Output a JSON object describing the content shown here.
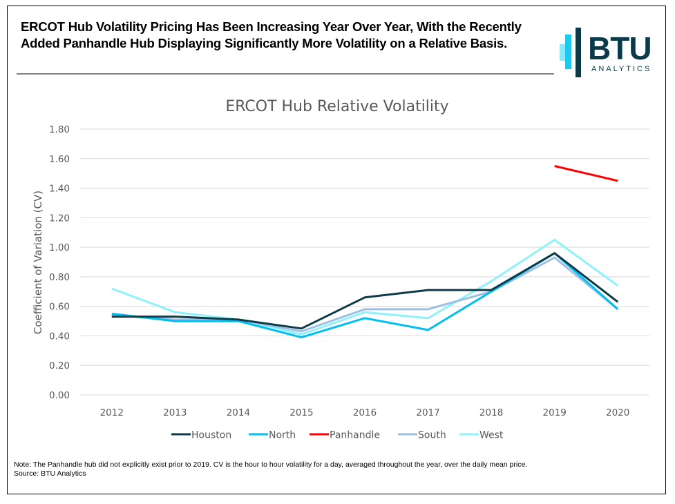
{
  "headline": "ERCOT Hub Volatility Pricing Has Been Increasing Year Over Year, With the Recently Added Panhandle Hub Displaying Significantly More Volatility on a Relative Basis.",
  "logo": {
    "brand": "BTU",
    "sub": "ANALYTICS",
    "icon": "bars-icon",
    "colors": {
      "dark": "#0b3a4a",
      "mid": "#1ec8f0",
      "light": "#8ee8f5"
    }
  },
  "note": {
    "line1": "Note: The Panhandle hub did not explicitly exist prior to 2019. CV is the hour to hour volatility for a day, averaged throughout the year, over the daily mean price.",
    "source": "Source: BTU Analytics"
  },
  "chart_data": {
    "type": "line",
    "title": "ERCOT Hub Relative Volatility",
    "xlabel": "",
    "ylabel": "Coefficient of Variation (CV)",
    "ylim": [
      0,
      1.8
    ],
    "yticks": [
      "0.00",
      "0.20",
      "0.40",
      "0.60",
      "0.80",
      "1.00",
      "1.20",
      "1.40",
      "1.60",
      "1.80"
    ],
    "grid": true,
    "legend": "bottom",
    "categories": [
      "2012",
      "2013",
      "2014",
      "2015",
      "2016",
      "2017",
      "2018",
      "2019",
      "2020"
    ],
    "series": [
      {
        "name": "Houston",
        "color": "#0d3b4a",
        "values": [
          0.53,
          0.53,
          0.51,
          0.45,
          0.66,
          0.71,
          0.71,
          0.96,
          0.63
        ]
      },
      {
        "name": "North",
        "color": "#00bff0",
        "values": [
          0.55,
          0.5,
          0.5,
          0.39,
          0.52,
          0.44,
          0.7,
          0.96,
          0.58
        ]
      },
      {
        "name": "Panhandle",
        "color": "#ff0000",
        "values": [
          null,
          null,
          null,
          null,
          null,
          null,
          null,
          1.55,
          1.45
        ]
      },
      {
        "name": "South",
        "color": "#9ebfe3",
        "values": [
          0.54,
          0.51,
          0.51,
          0.43,
          0.58,
          0.58,
          0.7,
          0.93,
          0.58
        ]
      },
      {
        "name": "West",
        "color": "#8ef2fa",
        "values": [
          0.72,
          0.56,
          0.51,
          0.41,
          0.56,
          0.52,
          0.77,
          1.05,
          0.74
        ]
      }
    ]
  }
}
